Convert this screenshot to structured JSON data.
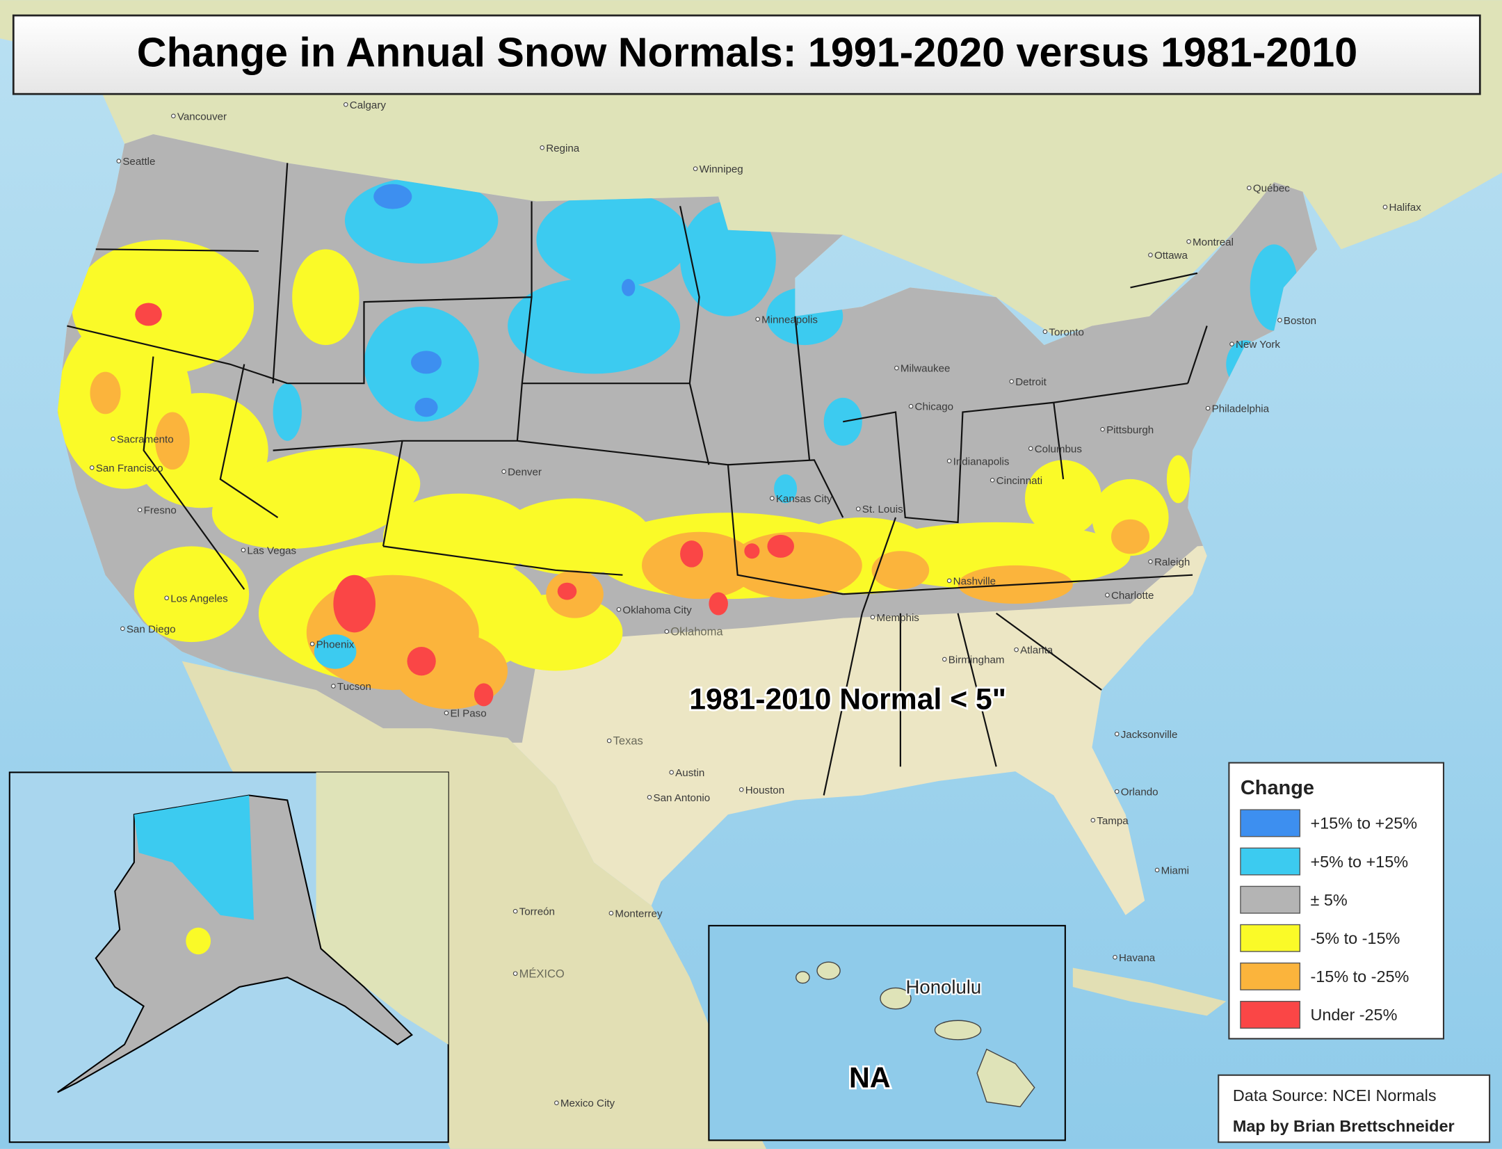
{
  "title": "Change in Annual Snow Normals: 1991-2020 versus 1981-2010",
  "legend": {
    "title": "Change",
    "items": [
      {
        "label": "+15% to +25%",
        "color": "#3d8ff0"
      },
      {
        "label": "+5% to +15%",
        "color": "#3ccbf0"
      },
      {
        "label": "± 5%",
        "color": "#b4b4b4"
      },
      {
        "label": "-5% to -15%",
        "color": "#fafa28"
      },
      {
        "label": "-15% to -25%",
        "color": "#fbb43c"
      },
      {
        "label": "Under -25%",
        "color": "#fa4646"
      }
    ]
  },
  "annotations": {
    "low_normal": "1981-2010 Normal < 5\"",
    "hawaii": "NA",
    "honolulu": "Honolulu"
  },
  "credits": {
    "source": "Data Source: NCEI Normals",
    "author": "Map by Brian Brettschneider"
  },
  "places": [
    "Calgary",
    "Regina",
    "Winnipeg",
    "Vancouver",
    "Seattle",
    "Sacramento",
    "San Francisco",
    "Fresno",
    "Las Vegas",
    "Los Angeles",
    "San Diego",
    "Phoenix",
    "Tucson",
    "Denver",
    "El Paso",
    "Oklahoma City",
    "Oklahoma",
    "Kansas City",
    "St. Louis",
    "Chicago",
    "Milwaukee",
    "Minneapolis",
    "Detroit",
    "Toronto",
    "Ottawa",
    "Montreal",
    "Boston",
    "New York",
    "Philadelphia",
    "Pittsburgh",
    "Cincinnati",
    "Indianapolis",
    "Columbus",
    "Nashville",
    "Memphis",
    "Charlotte",
    "Raleigh",
    "Birmingham",
    "Atlanta",
    "Jacksonville",
    "Orlando",
    "Tampa",
    "Miami",
    "Houston",
    "Austin",
    "San Antonio",
    "Texas",
    "Havana",
    "Torreón",
    "Monterrey",
    "MÉXICO",
    "Mexico City",
    "Halifax",
    "Québec"
  ]
}
